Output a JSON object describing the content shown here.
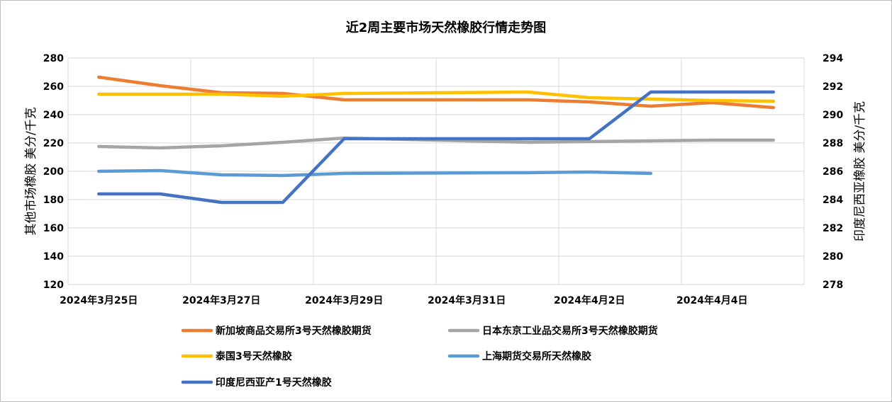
{
  "chart_data": {
    "type": "line",
    "title": "近2周主要市场天然橡胶行情走势图",
    "ylabel_left": "其他市场橡胶  美分/千克",
    "ylabel_right": "印度尼西亚橡胶  美分/千克",
    "ylim_left": [
      120,
      280
    ],
    "ylim_right": [
      278,
      294
    ],
    "yticks_left": [
      120,
      140,
      160,
      180,
      200,
      220,
      240,
      260,
      280
    ],
    "yticks_right": [
      278,
      280,
      282,
      284,
      286,
      288,
      290,
      292,
      294
    ],
    "x": [
      "2024-03-25",
      "2024-03-26",
      "2024-03-27",
      "2024-03-28",
      "2024-03-29",
      "2024-03-30",
      "2024-03-31",
      "2024-04-01",
      "2024-04-02",
      "2024-04-03",
      "2024-04-04",
      "2024-04-05"
    ],
    "xtick_labels": [
      "2024年3月25日",
      "2024年3月27日",
      "2024年3月29日",
      "2024年3月31日",
      "2024年4月2日",
      "2024年4月4日"
    ],
    "grid": true,
    "legend_position": "bottom",
    "series": [
      {
        "name": "新加坡商品交易所3号天然橡胶期货",
        "axis": "left",
        "color": "#ED7D31",
        "values": [
          266.5,
          260.5,
          255.5,
          255,
          250.5,
          null,
          null,
          250.5,
          249,
          246,
          248.5,
          245
        ]
      },
      {
        "name": "日本东京工业品交易所3号天然橡胶期货",
        "axis": "left",
        "color": "#A5A5A5",
        "values": [
          217.5,
          216.5,
          218,
          220.5,
          223.5,
          null,
          null,
          220.5,
          221,
          221.5,
          222,
          222
        ]
      },
      {
        "name": "泰国3号天然橡胶",
        "axis": "left",
        "color": "#FFC000",
        "values": [
          254.5,
          254.5,
          254.5,
          253,
          255,
          null,
          null,
          256,
          252,
          251,
          250,
          249.5
        ]
      },
      {
        "name": "上海期货交易所天然橡胶",
        "axis": "left",
        "color": "#5B9BD5",
        "values": [
          200,
          200.5,
          197.5,
          197,
          198.5,
          null,
          null,
          199,
          199.5,
          198.5,
          null,
          null
        ]
      },
      {
        "name": "印度尼西亚产1号天然橡胶",
        "axis": "right",
        "color": "#4472C4",
        "values": [
          284.4,
          284.4,
          283.8,
          283.8,
          288.3,
          null,
          null,
          288.3,
          288.3,
          291.6,
          291.6,
          291.6
        ]
      }
    ]
  }
}
